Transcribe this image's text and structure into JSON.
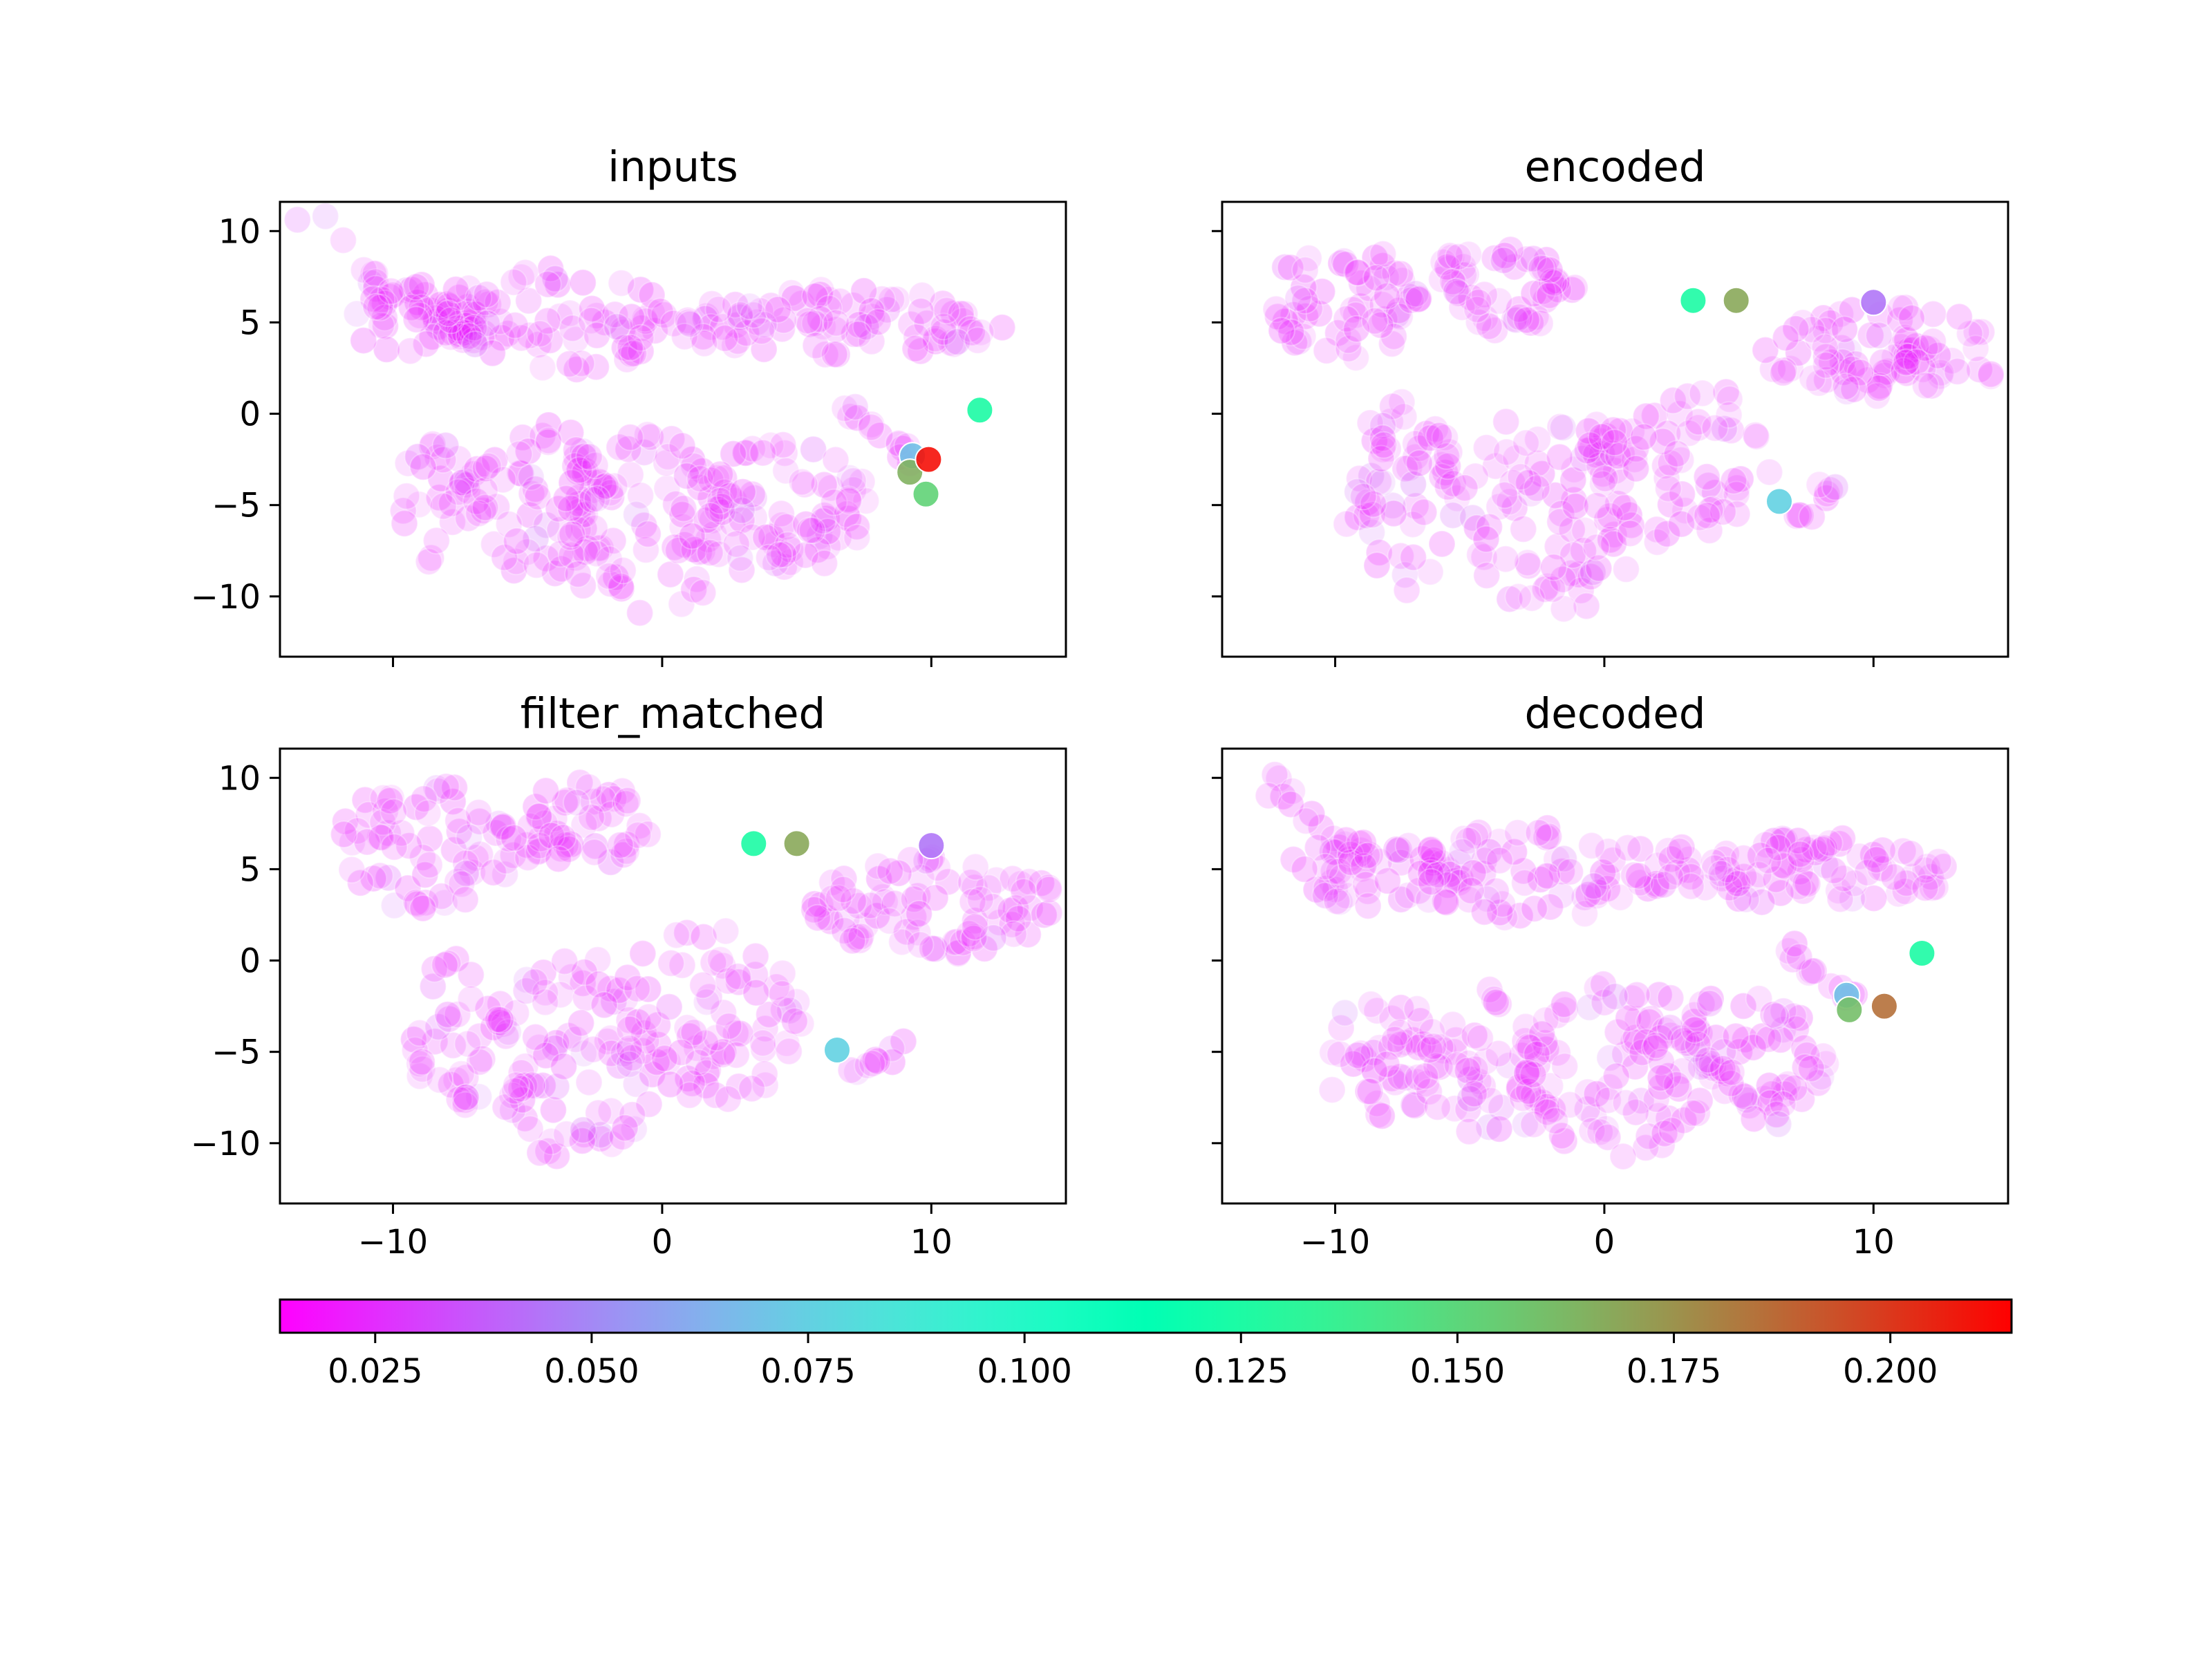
{
  "chart_data": [
    {
      "type": "scatter",
      "title": "inputs",
      "xlim": [
        -14.2,
        15.0
      ],
      "ylim": [
        -13.3,
        11.6
      ],
      "xticks": [
        -10,
        0,
        10
      ],
      "yticks": [
        10,
        5,
        0,
        -5,
        -10
      ],
      "highlight_points": [
        {
          "x": 9.9,
          "y": -2.5,
          "value": 0.21
        },
        {
          "x": 9.2,
          "y": -3.2,
          "value": 0.165
        },
        {
          "x": 9.8,
          "y": -4.4,
          "value": 0.152
        },
        {
          "x": 11.8,
          "y": 0.2,
          "value": 0.125
        },
        {
          "x": 9.3,
          "y": -2.3,
          "value": 0.07
        }
      ],
      "clusters": [
        {
          "kind": "path",
          "pts": [
            [
              -12.4,
              10.4
            ],
            [
              -11.5,
              9.0
            ],
            [
              -10.6,
              7.5
            ],
            [
              -9.8,
              6.4
            ],
            [
              -8.5,
              5.8
            ],
            [
              -7.5,
              5.5
            ]
          ],
          "w": 0.9,
          "n": 22
        },
        {
          "kind": "blob",
          "cx": -8.5,
          "cy": 5.0,
          "rx": 3.2,
          "ry": 2.2,
          "n": 45
        },
        {
          "kind": "blob",
          "cx": -3.6,
          "cy": 5.2,
          "rx": 4.4,
          "ry": 2.8,
          "n": 70
        },
        {
          "kind": "blob",
          "cx": 6.5,
          "cy": 4.9,
          "rx": 6.2,
          "ry": 1.9,
          "n": 90
        },
        {
          "kind": "blob",
          "cx": -8.3,
          "cy": -5.0,
          "rx": 1.5,
          "ry": 3.6,
          "n": 30
        },
        {
          "kind": "blob",
          "cx": -4.5,
          "cy": -5.0,
          "rx": 2.8,
          "ry": 4.4,
          "n": 60
        },
        {
          "kind": "blob",
          "cx": -0.6,
          "cy": -6.0,
          "rx": 3.4,
          "ry": 5.0,
          "n": 80
        },
        {
          "kind": "blob",
          "cx": 4.2,
          "cy": -5.2,
          "rx": 3.6,
          "ry": 3.6,
          "n": 70
        },
        {
          "kind": "path",
          "pts": [
            [
              6.5,
              0.6
            ],
            [
              7.8,
              -0.6
            ],
            [
              8.7,
              -1.6
            ],
            [
              9.3,
              -2.6
            ]
          ],
          "w": 0.4,
          "n": 14
        },
        {
          "kind": "path",
          "pts": [
            [
              6.8,
              -4.8
            ],
            [
              5.5,
              -6.8
            ],
            [
              4.0,
              -8.2
            ]
          ],
          "w": 0.5,
          "n": 10
        }
      ]
    },
    {
      "type": "scatter",
      "title": "encoded",
      "xlim": [
        -14.2,
        15.0
      ],
      "ylim": [
        -13.3,
        11.6
      ],
      "xticks": [
        -10,
        0,
        10
      ],
      "yticks": [
        10,
        5,
        0,
        -5,
        -10
      ],
      "highlight_points": [
        {
          "x": 3.3,
          "y": 6.2,
          "value": 0.125
        },
        {
          "x": 4.9,
          "y": 6.2,
          "value": 0.168
        },
        {
          "x": 6.5,
          "y": -4.8,
          "value": 0.075
        },
        {
          "x": 10.0,
          "y": 6.1,
          "value": 0.045
        }
      ],
      "clusters": [
        {
          "kind": "blob",
          "cx": -9.7,
          "cy": 6.2,
          "rx": 2.9,
          "ry": 3.2,
          "n": 60
        },
        {
          "kind": "blob",
          "cx": -4.0,
          "cy": 6.8,
          "rx": 3.0,
          "ry": 2.3,
          "n": 55
        },
        {
          "kind": "blob",
          "cx": 10.5,
          "cy": 3.3,
          "rx": 4.7,
          "ry": 2.6,
          "n": 85
        },
        {
          "kind": "blob",
          "cx": -7.5,
          "cy": -4.5,
          "rx": 2.2,
          "ry": 5.2,
          "n": 55
        },
        {
          "kind": "blob",
          "cx": -2.0,
          "cy": -5.5,
          "rx": 3.4,
          "ry": 5.8,
          "n": 80
        },
        {
          "kind": "blob",
          "cx": 2.7,
          "cy": -2.6,
          "rx": 3.6,
          "ry": 4.6,
          "n": 70
        },
        {
          "kind": "path",
          "pts": [
            [
              8.6,
              -3.7
            ],
            [
              7.8,
              -5.3
            ],
            [
              6.5,
              -6.0
            ]
          ],
          "w": 0.4,
          "n": 9
        },
        {
          "kind": "path",
          "pts": [
            [
              -8.2,
              0.5
            ],
            [
              -8.2,
              -2.5
            ]
          ],
          "w": 0.3,
          "n": 5
        }
      ]
    },
    {
      "type": "scatter",
      "title": "filter_matched",
      "xlim": [
        -14.2,
        15.0
      ],
      "ylim": [
        -13.3,
        11.6
      ],
      "xticks": [
        -10,
        0,
        10
      ],
      "yticks": [
        10,
        5,
        0,
        -5,
        -10
      ],
      "highlight_points": [
        {
          "x": 3.4,
          "y": 6.4,
          "value": 0.125
        },
        {
          "x": 5.0,
          "y": 6.4,
          "value": 0.168
        },
        {
          "x": 6.5,
          "y": -4.9,
          "value": 0.075
        },
        {
          "x": 10.0,
          "y": 6.3,
          "value": 0.045
        }
      ],
      "clusters": [
        {
          "kind": "blob",
          "cx": -8.8,
          "cy": 6.3,
          "rx": 3.3,
          "ry": 3.6,
          "n": 65
        },
        {
          "kind": "blob",
          "cx": -3.3,
          "cy": 7.4,
          "rx": 2.9,
          "ry": 2.5,
          "n": 50
        },
        {
          "kind": "blob",
          "cx": 10.2,
          "cy": 3.0,
          "rx": 4.6,
          "ry": 2.7,
          "n": 85
        },
        {
          "kind": "blob",
          "cx": -7.5,
          "cy": -4.0,
          "rx": 1.8,
          "ry": 4.6,
          "n": 40
        },
        {
          "kind": "blob",
          "cx": -3.0,
          "cy": -5.5,
          "rx": 3.4,
          "ry": 5.8,
          "n": 85
        },
        {
          "kind": "blob",
          "cx": 1.6,
          "cy": -3.0,
          "rx": 3.8,
          "ry": 4.8,
          "n": 75
        },
        {
          "kind": "path",
          "pts": [
            [
              9.5,
              -4.2
            ],
            [
              8.2,
              -5.6
            ],
            [
              7.0,
              -6.2
            ]
          ],
          "w": 0.4,
          "n": 9
        }
      ]
    },
    {
      "type": "scatter",
      "title": "decoded",
      "xlim": [
        -14.2,
        15.0
      ],
      "ylim": [
        -13.3,
        11.6
      ],
      "xticks": [
        -10,
        0,
        10
      ],
      "yticks": [
        10,
        5,
        0,
        -5,
        -10
      ],
      "highlight_points": [
        {
          "x": 10.4,
          "y": -2.5,
          "value": 0.185
        },
        {
          "x": 9.1,
          "y": -2.7,
          "value": 0.16
        },
        {
          "x": 11.8,
          "y": 0.4,
          "value": 0.125
        },
        {
          "x": 9.0,
          "y": -1.9,
          "value": 0.07
        }
      ],
      "clusters": [
        {
          "kind": "path",
          "pts": [
            [
              -12.8,
              10.4
            ],
            [
              -11.8,
              9.0
            ],
            [
              -10.6,
              7.4
            ],
            [
              -9.5,
              6.2
            ],
            [
              -8.3,
              5.6
            ]
          ],
          "w": 0.9,
          "n": 20
        },
        {
          "kind": "blob",
          "cx": -8.5,
          "cy": 4.8,
          "rx": 3.3,
          "ry": 2.0,
          "n": 45
        },
        {
          "kind": "blob",
          "cx": -2.5,
          "cy": 4.8,
          "rx": 4.8,
          "ry": 2.6,
          "n": 70
        },
        {
          "kind": "blob",
          "cx": 7.3,
          "cy": 5.0,
          "rx": 5.9,
          "ry": 1.9,
          "n": 90
        },
        {
          "kind": "blob",
          "cx": -8.2,
          "cy": -5.2,
          "rx": 2.3,
          "ry": 3.4,
          "n": 40
        },
        {
          "kind": "blob",
          "cx": -4.0,
          "cy": -5.5,
          "rx": 3.0,
          "ry": 4.2,
          "n": 60
        },
        {
          "kind": "blob",
          "cx": 0.6,
          "cy": -6.0,
          "rx": 3.6,
          "ry": 4.8,
          "n": 75
        },
        {
          "kind": "blob",
          "cx": 5.0,
          "cy": -5.5,
          "rx": 3.3,
          "ry": 3.6,
          "n": 65
        },
        {
          "kind": "path",
          "pts": [
            [
              6.2,
              0.8
            ],
            [
              7.5,
              -0.3
            ],
            [
              8.6,
              -1.4
            ],
            [
              9.2,
              -2.3
            ]
          ],
          "w": 0.4,
          "n": 13
        },
        {
          "kind": "path",
          "pts": [
            [
              7.6,
              -5.4
            ],
            [
              6.8,
              -7.5
            ],
            [
              5.8,
              -9.0
            ]
          ],
          "w": 0.5,
          "n": 8
        }
      ]
    }
  ],
  "colorbar": {
    "colormap": "rainbow",
    "range": [
      0.014,
      0.214
    ],
    "tick_values": [
      0.025,
      0.05,
      0.075,
      0.1,
      0.125,
      0.15,
      0.175,
      0.2
    ],
    "tick_labels": [
      "0.025",
      "0.050",
      "0.075",
      "0.100",
      "0.125",
      "0.150",
      "0.175",
      "0.200"
    ]
  },
  "axis_tick_labels": {
    "x": [
      "−10",
      "0",
      "10"
    ],
    "y": [
      "10",
      "5",
      "0",
      "−5",
      "−10"
    ]
  },
  "base_point_value": 0.022
}
